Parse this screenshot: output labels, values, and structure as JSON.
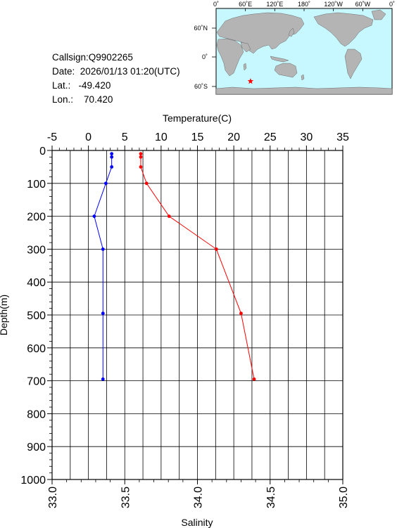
{
  "station": {
    "callsign_label": "Callsign:",
    "callsign": "Q9902265",
    "date_label": "Date:",
    "date": "2026/01/13 01:20(UTC)",
    "lat_label": "Lat.:",
    "lat": "-49.420",
    "lon_label": "Lon.:",
    "lon": "70.420"
  },
  "map": {
    "lon_labels": [
      "0˚",
      "60˚E",
      "120˚E",
      "180˚",
      "120˚W",
      "60˚W",
      "0˚"
    ],
    "lat_labels": [
      "60˚N",
      "0˚",
      "60˚S"
    ],
    "marker": {
      "lon": 70.42,
      "lat": -49.42
    },
    "colors": {
      "ocean": "#c8f8ff",
      "land": "#b4b4b4",
      "marker": "#ff0000"
    }
  },
  "chart_data": {
    "type": "line",
    "ylabel": "Depth(m)",
    "ylim": [
      0,
      1000
    ],
    "y_reversed": true,
    "y_ticks": [
      "0",
      "100",
      "200",
      "300",
      "400",
      "500",
      "600",
      "700",
      "800",
      "900",
      "1000"
    ],
    "top_axis": {
      "label": "Temperature(C)",
      "range": [
        -5,
        35
      ],
      "ticks": [
        "-5",
        "0",
        "5",
        "10",
        "15",
        "20",
        "25",
        "30",
        "35"
      ]
    },
    "bottom_axis": {
      "label": "Salinity",
      "range": [
        33.0,
        35.0
      ],
      "ticks": [
        "33.0",
        "33.5",
        "34.0",
        "34.5",
        "35.0"
      ]
    },
    "grid": true,
    "series": [
      {
        "axis": "top",
        "color": "#ff0000",
        "points": [
          [
            7.2,
            10
          ],
          [
            7.2,
            20
          ],
          [
            7.2,
            50
          ],
          [
            8.0,
            100
          ],
          [
            11.1,
            200
          ],
          [
            17.6,
            300
          ],
          [
            21.0,
            495
          ],
          [
            22.8,
            695
          ]
        ]
      },
      {
        "axis": "bottom",
        "color": "#0000ff",
        "points": [
          [
            33.41,
            10
          ],
          [
            33.41,
            20
          ],
          [
            33.41,
            50
          ],
          [
            33.37,
            100
          ],
          [
            33.29,
            200
          ],
          [
            33.35,
            300
          ],
          [
            33.35,
            495
          ],
          [
            33.35,
            695
          ]
        ]
      }
    ]
  }
}
